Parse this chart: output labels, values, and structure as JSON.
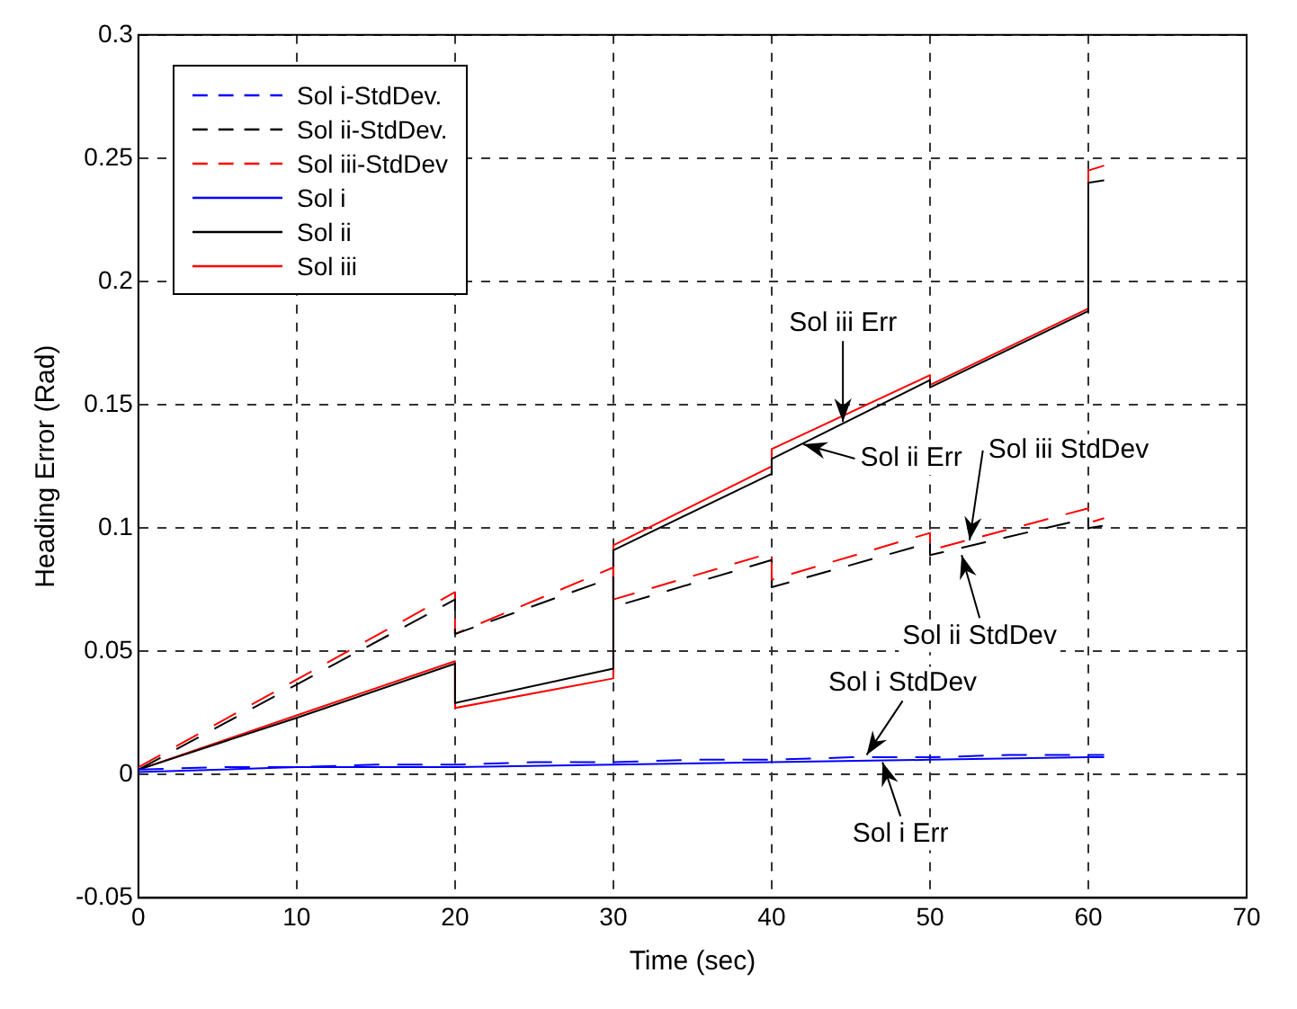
{
  "chart_data": {
    "type": "line",
    "xlabel": "Time (sec)",
    "ylabel": "Heading Error (Rad)",
    "xlim": [
      0,
      70
    ],
    "xticks": [
      0,
      10,
      20,
      30,
      40,
      50,
      60,
      70
    ],
    "ylim": [
      -0.05,
      0.3
    ],
    "yticks": [
      -0.05,
      0,
      0.05,
      0.1,
      0.15,
      0.2,
      0.25,
      0.3
    ],
    "grid": true,
    "legend": "top left",
    "marker": "none",
    "series": [
      {
        "name": "Sol i-StdDev.",
        "color": "#0000ff",
        "line_style": "dashed",
        "x": [
          0,
          5,
          10,
          15,
          20,
          25,
          30,
          35,
          40,
          45,
          50,
          55,
          60,
          61
        ],
        "values": [
          0.002,
          0.003,
          0.003,
          0.004,
          0.004,
          0.005,
          0.005,
          0.006,
          0.006,
          0.007,
          0.007,
          0.008,
          0.008,
          0.008
        ]
      },
      {
        "name": "Sol ii-StdDev.",
        "color": "#000000",
        "line_style": "dashed",
        "x": [
          0,
          20,
          20,
          30,
          30,
          40,
          40,
          50,
          50,
          60,
          60,
          61
        ],
        "values": [
          0.002,
          0.071,
          0.057,
          0.08,
          0.068,
          0.087,
          0.076,
          0.094,
          0.089,
          0.104,
          0.1,
          0.101
        ]
      },
      {
        "name": "Sol iii-StdDev",
        "color": "#ff0000",
        "line_style": "dashed",
        "x": [
          0,
          20,
          20,
          30,
          30,
          40,
          40,
          50,
          50,
          60,
          60,
          61
        ],
        "values": [
          0.003,
          0.074,
          0.057,
          0.084,
          0.071,
          0.09,
          0.079,
          0.098,
          0.091,
          0.108,
          0.102,
          0.104
        ]
      },
      {
        "name": "Sol i",
        "color": "#0000ff",
        "line_style": "solid",
        "x": [
          0,
          10,
          20,
          30,
          40,
          50,
          60,
          61
        ],
        "values": [
          0.001,
          0.003,
          0.003,
          0.004,
          0.005,
          0.006,
          0.007,
          0.007
        ]
      },
      {
        "name": "Sol ii",
        "color": "#000000",
        "line_style": "solid",
        "x": [
          0,
          10,
          20,
          20,
          30,
          30,
          40,
          40,
          50,
          50,
          60,
          60,
          61
        ],
        "values": [
          0.002,
          0.023,
          0.045,
          0.029,
          0.043,
          0.091,
          0.122,
          0.128,
          0.16,
          0.157,
          0.188,
          0.24,
          0.241
        ]
      },
      {
        "name": "Sol iii",
        "color": "#ff0000",
        "line_style": "solid",
        "x": [
          0,
          10,
          20,
          20,
          30,
          30,
          40,
          40,
          50,
          50,
          60,
          60,
          61
        ],
        "values": [
          0.002,
          0.024,
          0.046,
          0.027,
          0.039,
          0.093,
          0.125,
          0.132,
          0.162,
          0.158,
          0.189,
          0.245,
          0.247
        ]
      }
    ],
    "annotations": [
      {
        "text": "Sol iii Err",
        "x": 44.5,
        "y": 0.143
      },
      {
        "text": "Sol ii Err",
        "x": 42,
        "y": 0.134
      },
      {
        "text": "Sol iii StdDev",
        "x": 52.5,
        "y": 0.095
      },
      {
        "text": "Sol ii StdDev",
        "x": 52,
        "y": 0.089
      },
      {
        "text": "Sol i StdDev",
        "x": 46,
        "y": 0.008
      },
      {
        "text": "Sol i Err",
        "x": 47,
        "y": 0.005
      }
    ]
  }
}
